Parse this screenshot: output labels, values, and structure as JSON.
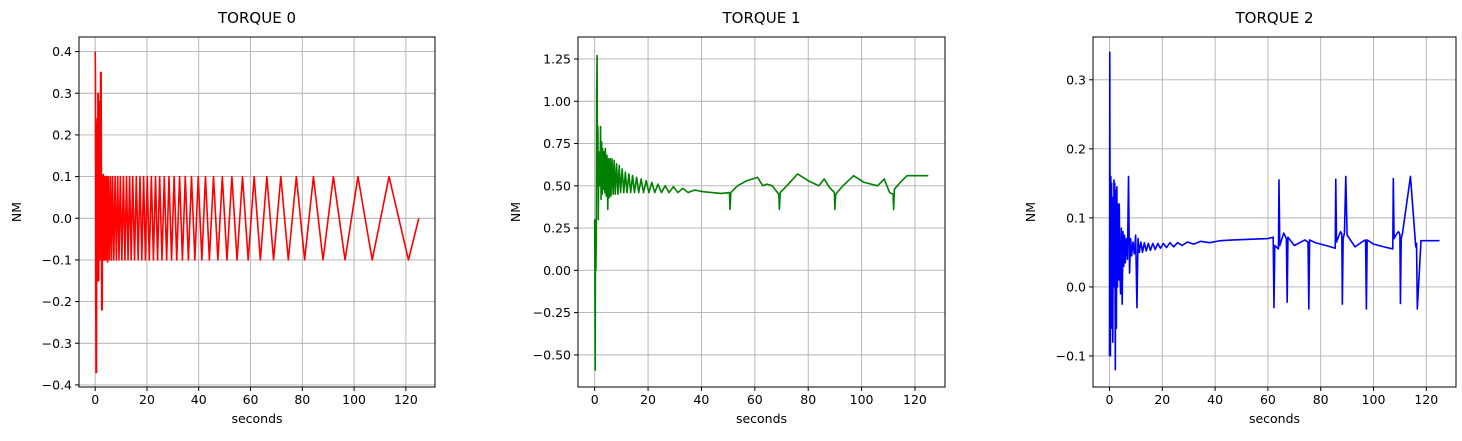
{
  "chart_data": [
    {
      "type": "line",
      "title": "TORQUE 0",
      "xlabel": "seconds",
      "ylabel": "NM",
      "xlim": [
        -6.25,
        131.25
      ],
      "ylim": [
        -0.405,
        0.435
      ],
      "xticks": [
        0,
        20,
        40,
        60,
        80,
        100,
        120
      ],
      "yticks": [
        -0.4,
        -0.3,
        -0.2,
        -0.1,
        0.0,
        0.1,
        0.2,
        0.3,
        0.4
      ],
      "tick_decimals": 1,
      "grid": true,
      "color": "#ff0000",
      "series": [
        {
          "x": [
            0.0,
            0.1,
            0.2,
            0.35,
            0.5,
            0.65,
            0.8,
            0.95,
            1.05,
            1.2,
            1.35,
            1.5,
            1.65,
            1.8,
            1.95,
            2.1,
            2.3,
            2.5,
            2.7,
            2.9,
            3.1,
            3.3,
            3.5,
            3.7,
            3.9,
            4.2,
            4.5,
            4.8,
            5.1,
            5.5,
            5.9,
            6.3,
            6.7,
            7.2,
            7.7,
            8.2,
            8.7,
            9.2,
            9.7,
            10.3,
            10.9,
            11.5,
            12.1,
            12.7,
            13.3,
            13.9,
            14.5,
            15.2,
            15.9,
            16.6,
            17.3,
            18.0,
            18.7,
            19.4,
            20.1,
            20.9,
            21.7,
            22.5,
            23.3,
            24.1,
            24.9,
            25.8,
            26.7,
            27.6,
            28.5,
            29.5,
            30.5,
            31.5,
            32.6,
            33.7,
            34.8,
            36.0,
            37.2,
            38.5,
            39.8,
            41.2,
            42.6,
            44.1,
            45.7,
            47.4,
            49.1,
            50.9,
            52.8,
            54.8,
            56.9,
            59.1,
            61.4,
            63.8,
            66.3,
            68.9,
            71.7,
            74.6,
            77.7,
            80.9,
            84.3,
            88.0,
            92.0,
            96.5,
            101.5,
            107.0,
            113.5,
            121.0,
            125.0
          ],
          "y": [
            0.4,
            0.35,
            -0.15,
            -0.37,
            -0.37,
            0.2,
            0.24,
            -0.15,
            0.3,
            0.3,
            -0.15,
            0.1,
            0.28,
            -0.1,
            0.05,
            0.35,
            0.35,
            -0.22,
            -0.22,
            0.1,
            0.105,
            -0.1,
            0.1,
            -0.1,
            0.1,
            -0.1,
            0.1,
            -0.105,
            0.1,
            -0.1,
            0.1,
            -0.1,
            0.1,
            -0.1,
            0.1,
            -0.1,
            0.1,
            -0.1,
            0.1,
            -0.1,
            0.1,
            -0.1,
            0.1,
            -0.1,
            0.1,
            -0.1,
            0.1,
            -0.1,
            0.1,
            -0.1,
            0.1,
            -0.1,
            0.1,
            -0.1,
            0.1,
            -0.1,
            0.1,
            -0.1,
            0.1,
            -0.1,
            0.1,
            -0.1,
            0.1,
            -0.1,
            0.1,
            -0.1,
            0.1,
            -0.1,
            0.1,
            -0.1,
            0.1,
            -0.1,
            0.1,
            -0.1,
            0.1,
            -0.1,
            0.1,
            -0.1,
            0.1,
            -0.1,
            0.1,
            -0.1,
            0.1,
            -0.1,
            0.1,
            -0.1,
            0.1,
            -0.1,
            0.1,
            -0.1,
            0.1,
            -0.1,
            0.1,
            -0.1,
            0.1,
            -0.1,
            0.1,
            -0.1,
            0.1,
            -0.1,
            0.1,
            -0.1,
            0.0
          ]
        }
      ]
    },
    {
      "type": "line",
      "title": "TORQUE 1",
      "xlabel": "seconds",
      "ylabel": "NM",
      "xlim": [
        -6.25,
        131.25
      ],
      "ylim": [
        -0.69,
        1.38
      ],
      "xticks": [
        0,
        20,
        40,
        60,
        80,
        100,
        120
      ],
      "yticks": [
        -0.5,
        -0.25,
        0.0,
        0.25,
        0.5,
        0.75,
        1.0,
        1.25
      ],
      "tick_decimals": 2,
      "grid": true,
      "color": "#008000",
      "series": [
        {
          "x": [
            0.0,
            0.1,
            0.2,
            0.3,
            0.45,
            0.6,
            0.75,
            0.9,
            1.05,
            1.2,
            1.35,
            1.5,
            1.65,
            1.8,
            2.0,
            2.2,
            2.4,
            2.6,
            2.8,
            3.0,
            3.25,
            3.5,
            3.75,
            4.0,
            4.3,
            4.6,
            4.9,
            5.2,
            5.5,
            5.8,
            6.1,
            6.5,
            6.9,
            7.3,
            7.7,
            8.2,
            8.7,
            9.2,
            9.7,
            10.3,
            10.9,
            11.5,
            12.1,
            12.8,
            13.5,
            14.2,
            14.9,
            15.7,
            16.5,
            17.4,
            18.3,
            19.3,
            20.3,
            21.4,
            22.5,
            23.7,
            25.0,
            26.4,
            27.9,
            29.5,
            31.2,
            33.0,
            35.0,
            37.5,
            40.5,
            44.0,
            47.5,
            50.5,
            50.7,
            51.0,
            53.5,
            57.0,
            61.0,
            63.0,
            64.5,
            66.5,
            68.0,
            69.0,
            69.2,
            69.5,
            72.0,
            76.0,
            80.0,
            84.0,
            86.0,
            88.0,
            89.8,
            90.0,
            90.3,
            93.0,
            97.0,
            101.0,
            106.0,
            108.5,
            110.5,
            111.8,
            112.0,
            112.3,
            114.5,
            117.0,
            125.0
          ],
          "y": [
            0.3,
            -0.1,
            -0.59,
            0.3,
            0.0,
            0.2,
            1.05,
            1.27,
            0.5,
            0.85,
            0.3,
            0.58,
            0.6,
            0.7,
            0.5,
            0.85,
            0.42,
            0.76,
            0.45,
            0.72,
            0.48,
            0.7,
            0.46,
            0.72,
            0.44,
            0.68,
            0.36,
            0.66,
            0.43,
            0.66,
            0.44,
            0.66,
            0.45,
            0.65,
            0.45,
            0.63,
            0.45,
            0.62,
            0.46,
            0.6,
            0.46,
            0.58,
            0.46,
            0.57,
            0.46,
            0.56,
            0.46,
            0.55,
            0.46,
            0.54,
            0.46,
            0.53,
            0.46,
            0.52,
            0.46,
            0.51,
            0.46,
            0.5,
            0.46,
            0.495,
            0.46,
            0.485,
            0.46,
            0.475,
            0.465,
            0.46,
            0.455,
            0.46,
            0.36,
            0.46,
            0.5,
            0.53,
            0.55,
            0.5,
            0.51,
            0.5,
            0.47,
            0.45,
            0.36,
            0.46,
            0.5,
            0.57,
            0.53,
            0.5,
            0.54,
            0.49,
            0.46,
            0.36,
            0.45,
            0.5,
            0.56,
            0.52,
            0.5,
            0.54,
            0.46,
            0.45,
            0.36,
            0.48,
            0.52,
            0.56,
            0.56
          ]
        }
      ]
    },
    {
      "type": "line",
      "title": "TORQUE 2",
      "xlabel": "seconds",
      "ylabel": "NM",
      "xlim": [
        -6.25,
        131.25
      ],
      "ylim": [
        -0.145,
        0.362
      ],
      "xticks": [
        0,
        20,
        40,
        60,
        80,
        100,
        120
      ],
      "yticks": [
        -0.1,
        0.0,
        0.1,
        0.2,
        0.3
      ],
      "tick_decimals": 1,
      "grid": true,
      "color": "#0000ff",
      "series": [
        {
          "x": [
            0.0,
            0.1,
            0.2,
            0.35,
            0.5,
            0.65,
            0.8,
            0.95,
            1.1,
            1.25,
            1.4,
            1.55,
            1.7,
            1.85,
            2.0,
            2.2,
            2.4,
            2.6,
            2.8,
            3.0,
            3.2,
            3.45,
            3.7,
            3.95,
            4.2,
            4.5,
            4.8,
            5.1,
            5.4,
            5.7,
            6.0,
            6.4,
            6.8,
            7.2,
            7.6,
            8.0,
            8.4,
            8.9,
            9.4,
            9.9,
            10.4,
            10.8,
            11.3,
            11.9,
            12.5,
            13.2,
            13.9,
            14.7,
            15.5,
            16.4,
            17.3,
            18.3,
            19.3,
            20.4,
            21.6,
            22.9,
            24.3,
            25.8,
            27.5,
            29.5,
            31.8,
            34.5,
            38.0,
            42.0,
            47.0,
            53.0,
            60.0,
            62.0,
            62.3,
            62.6,
            64.0,
            64.2,
            64.5,
            66.0,
            67.0,
            67.3,
            67.6,
            70.0,
            74.0,
            75.2,
            75.5,
            75.8,
            78.0,
            82.0,
            85.5,
            85.7,
            86.0,
            86.5,
            87.0,
            87.5,
            88.0,
            88.2,
            88.5,
            89.0,
            89.5,
            90.0,
            93.0,
            96.0,
            97.0,
            97.3,
            97.6,
            100.0,
            104.0,
            107.3,
            107.5,
            107.8,
            108.5,
            109.0,
            109.5,
            110.0,
            110.2,
            110.5,
            111.0,
            114.0,
            116.0,
            116.3,
            116.6,
            118.0,
            125.0
          ],
          "y": [
            -0.1,
            0.34,
            0.12,
            -0.1,
            0.16,
            -0.06,
            0.15,
            -0.04,
            0.12,
            -0.08,
            0.13,
            0.0,
            0.155,
            0.02,
            0.15,
            -0.12,
            0.14,
            -0.06,
            0.145,
            0.0,
            0.12,
            0.01,
            0.12,
            0.02,
            -0.01,
            0.085,
            -0.025,
            0.08,
            0.03,
            0.075,
            0.035,
            0.07,
            0.04,
            0.16,
            0.02,
            0.07,
            0.045,
            0.065,
            0.048,
            0.075,
            -0.03,
            0.07,
            0.05,
            0.065,
            0.05,
            0.064,
            0.052,
            0.063,
            0.053,
            0.063,
            0.054,
            0.063,
            0.056,
            0.063,
            0.057,
            0.064,
            0.058,
            0.064,
            0.06,
            0.065,
            0.062,
            0.066,
            0.064,
            0.067,
            0.068,
            0.069,
            0.07,
            0.072,
            -0.03,
            0.06,
            0.055,
            0.155,
            0.06,
            0.078,
            0.07,
            -0.022,
            0.072,
            0.06,
            0.068,
            0.065,
            -0.032,
            0.068,
            0.064,
            0.06,
            0.056,
            0.156,
            0.065,
            0.07,
            0.075,
            0.08,
            0.077,
            -0.025,
            0.07,
            0.078,
            0.16,
            0.075,
            0.058,
            0.066,
            0.068,
            -0.032,
            0.068,
            0.062,
            0.058,
            0.055,
            0.157,
            0.07,
            0.075,
            0.078,
            0.08,
            0.076,
            -0.024,
            0.07,
            0.078,
            0.16,
            0.058,
            0.063,
            -0.032,
            0.067,
            0.067
          ]
        }
      ]
    }
  ]
}
